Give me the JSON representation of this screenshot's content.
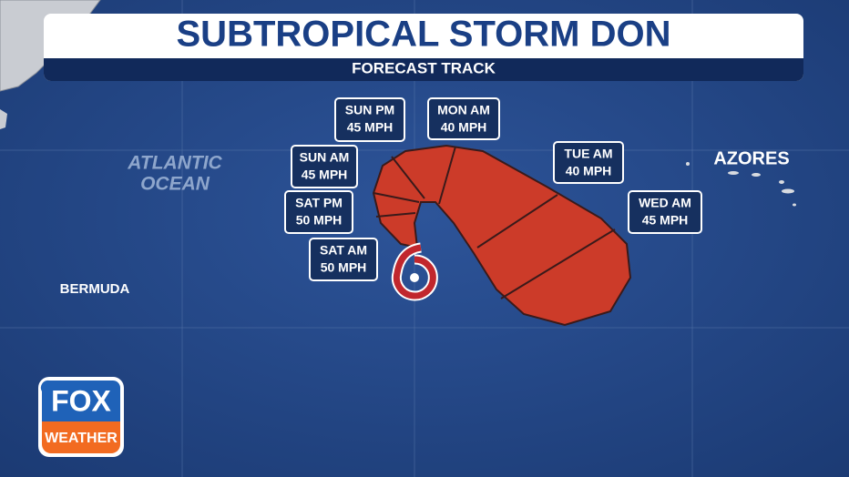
{
  "header": {
    "title": "SUBTROPICAL STORM DON",
    "subtitle": "FORECAST TRACK"
  },
  "forecast_points": [
    {
      "time": "SUN PM",
      "wind": "45 MPH"
    },
    {
      "time": "MON AM",
      "wind": "40 MPH"
    },
    {
      "time": "SUN AM",
      "wind": "45 MPH"
    },
    {
      "time": "SAT PM",
      "wind": "50 MPH"
    },
    {
      "time": "SAT AM",
      "wind": "50 MPH"
    },
    {
      "time": "TUE AM",
      "wind": "40 MPH"
    },
    {
      "time": "WED AM",
      "wind": "45 MPH"
    }
  ],
  "places": {
    "ocean_line1": "ATLANTIC",
    "ocean_line2": "OCEAN",
    "azores": "AZORES",
    "bermuda": "BERMUDA"
  },
  "logo": {
    "brand": "FOX",
    "sub": "WEATHER"
  }
}
